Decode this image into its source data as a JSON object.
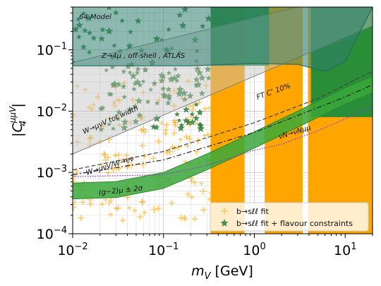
{
  "chart_data": {
    "type": "scatter",
    "title": "",
    "model_label": "64 Model",
    "xlabel": "m_V [GeV]",
    "xlabel_parts": {
      "sym": "m",
      "sub": "V",
      "unit": "[GeV]"
    },
    "ylabel": "|C_4^{μμV}|",
    "ylabel_parts": {
      "bar": "|",
      "sym": "C",
      "sub": "4",
      "sup": "μμV"
    },
    "x_scale": "log",
    "y_scale": "log",
    "xlim": [
      0.01,
      20
    ],
    "ylim": [
      0.0001,
      0.5
    ],
    "grid": true,
    "legend_position": "lower-right",
    "x_ticks": [
      {
        "value": 0.01,
        "base": "10",
        "exp": "−2"
      },
      {
        "value": 0.1,
        "base": "10",
        "exp": "−1"
      },
      {
        "value": 1,
        "base": "10",
        "exp": "0"
      },
      {
        "value": 10,
        "base": "10",
        "exp": "1"
      }
    ],
    "y_ticks": [
      {
        "value": 0.0001,
        "base": "10",
        "exp": "−4"
      },
      {
        "value": 0.001,
        "base": "10",
        "exp": "−3"
      },
      {
        "value": 0.01,
        "base": "10",
        "exp": "−2"
      },
      {
        "value": 0.1,
        "base": "10",
        "exp": "−1"
      }
    ],
    "colors": {
      "scatter_fit": "#ffa500",
      "scatter_flavour": "#2e7d32",
      "dense_orange": "#ffa500",
      "dense_green": "#1f8b3a",
      "excluded_fill": "#2f7f6f",
      "excluded_edge": "#1f6e60",
      "gm2_band": "#3aa83a",
      "grey_band": "#c0c0c0",
      "purple_line": "#8a2be2"
    },
    "series": [
      {
        "name": "b→sℓℓ fit",
        "marker": "plus",
        "color": "#ffa500"
      },
      {
        "name": "b→sℓℓ fit + flavour constraints",
        "marker": "star",
        "color": "#2e7d32"
      }
    ],
    "dense_regions": [
      {
        "x": [
          0.33,
          0.78
        ],
        "y": [
          0.0001,
          0.5
        ],
        "color": "orange"
      },
      {
        "x": [
          1.3,
          3.4
        ],
        "y": [
          0.0001,
          0.5
        ],
        "color": "orange"
      },
      {
        "x": [
          3.9,
          20
        ],
        "y": [
          0.0001,
          0.5
        ],
        "color": "orange"
      },
      {
        "x": [
          0.33,
          1.45
        ],
        "y": [
          0.055,
          0.5
        ],
        "color": "green"
      },
      {
        "x": [
          4.2,
          20
        ],
        "y": [
          0.008,
          0.5
        ],
        "color": "green"
      }
    ],
    "excluded_region": {
      "label": "Z→4μ , off-shell , ATLAS",
      "x": [
        0.01,
        0.2,
        1.0,
        3.0,
        6.0,
        10.0,
        20.0
      ],
      "y_lower": [
        0.055,
        0.055,
        0.06,
        0.058,
        0.045,
        0.065,
        0.5
      ]
    },
    "grey_band": {
      "label": "W→μνV tot width",
      "x": [
        0.01,
        20
      ],
      "y_lower": [
        0.002,
        0.25
      ],
      "y_upper": [
        0.062,
        1.0
      ]
    },
    "gm2_band": {
      "label": "(g−2)μ ± 2σ",
      "x": [
        0.01,
        0.03,
        0.1,
        0.3,
        1.0,
        3.0,
        10.0,
        20.0
      ],
      "y_lower": [
        0.00037,
        0.00039,
        0.00055,
        0.0011,
        0.0025,
        0.0055,
        0.013,
        0.02
      ],
      "y_upper": [
        0.00067,
        0.00071,
        0.001,
        0.002,
        0.0046,
        0.01,
        0.024,
        0.037
      ]
    },
    "lines": [
      {
        "label": "FT Cʼ 10%",
        "style": "dashed",
        "color": "#444444",
        "x": [
          0.01,
          0.1,
          1.0,
          5.0,
          20.0
        ],
        "y": [
          0.0011,
          0.0022,
          0.0065,
          0.016,
          0.045
        ]
      },
      {
        "label": "W→μνV/W→eν",
        "style": "dashdot",
        "color": "#222222",
        "x": [
          0.01,
          0.1,
          1.0,
          10.0,
          20.0
        ],
        "y": [
          0.00092,
          0.0016,
          0.0045,
          0.017,
          0.027
        ]
      },
      {
        "label": "νN→νNμμ",
        "style": "dotted",
        "color": "#8a2be2",
        "x": [
          0.01,
          0.1,
          0.3,
          1.0,
          2.0,
          5.0,
          10.0,
          20.0
        ],
        "y": [
          0.00085,
          0.00092,
          0.0013,
          0.0023,
          0.0029,
          0.0048,
          0.0075,
          0.012
        ]
      }
    ]
  }
}
